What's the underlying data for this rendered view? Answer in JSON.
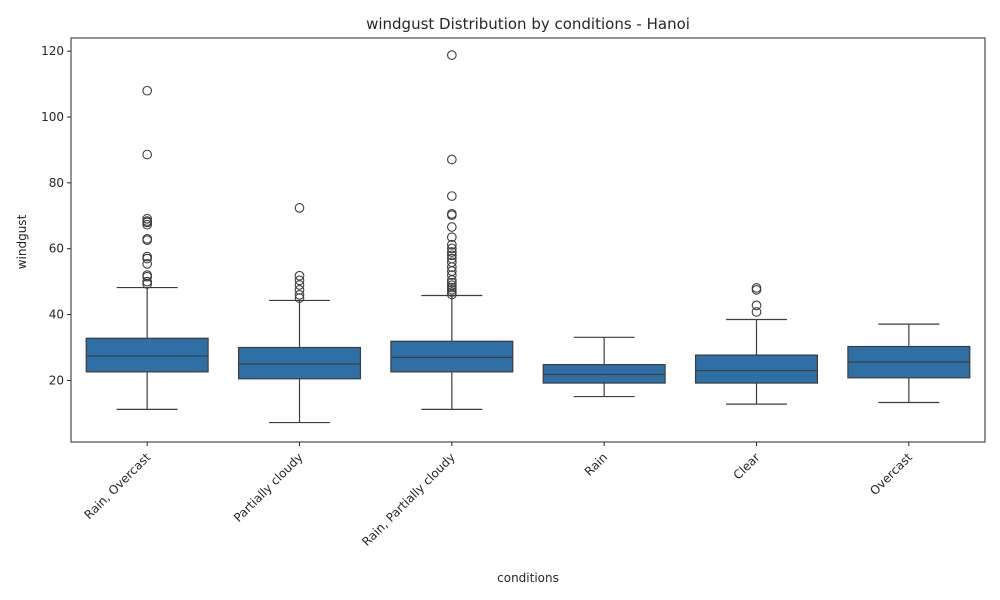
{
  "chart_data": {
    "type": "box",
    "title": "windgust Distribution by conditions - Hanoi",
    "xlabel": "conditions",
    "ylabel": "windgust",
    "ylim": [
      1.3,
      124.0
    ],
    "yticks": [
      20,
      40,
      60,
      80,
      100,
      120
    ],
    "grid": false,
    "legend": "none",
    "box_color": "#2e6fa5",
    "line_color": "#3d3d3d",
    "categories": [
      "Rain, Overcast",
      "Partially cloudy",
      "Rain, Partially cloudy",
      "Rain",
      "Clear",
      "Overcast"
    ],
    "boxes": [
      {
        "whislo": 11.2,
        "q1": 22.6,
        "med": 27.4,
        "q3": 32.8,
        "whishi": 48.2,
        "fliers": [
          49.3,
          50.0,
          51.5,
          52.0,
          55.4,
          57.0,
          57.6,
          62.6,
          63.0,
          67.3,
          68.0,
          68.4,
          69.1,
          88.6,
          108.0
        ]
      },
      {
        "whislo": 7.2,
        "q1": 20.5,
        "med": 25.0,
        "q3": 30.0,
        "whishi": 44.3,
        "fliers": [
          45.0,
          46.0,
          47.5,
          49.0,
          50.4,
          51.8,
          72.4
        ]
      },
      {
        "whislo": 11.2,
        "q1": 22.6,
        "med": 27.0,
        "q3": 31.9,
        "whishi": 45.8,
        "fliers": [
          46.1,
          46.8,
          47.5,
          48.2,
          48.9,
          49.7,
          50.5,
          52.0,
          53.2,
          54.4,
          55.9,
          57.0,
          58.0,
          59.0,
          60.1,
          61.2,
          63.5,
          66.6,
          70.2,
          70.6,
          76.0,
          87.1,
          118.8
        ]
      },
      {
        "whislo": 15.1,
        "q1": 19.2,
        "med": 21.8,
        "q3": 24.8,
        "whishi": 33.1,
        "fliers": []
      },
      {
        "whislo": 12.8,
        "q1": 19.2,
        "med": 23.0,
        "q3": 27.7,
        "whishi": 38.5,
        "fliers": [
          40.8,
          42.8,
          47.5,
          48.1
        ]
      },
      {
        "whislo": 13.3,
        "q1": 20.8,
        "med": 25.6,
        "q3": 30.3,
        "whishi": 37.1,
        "fliers": []
      }
    ]
  }
}
